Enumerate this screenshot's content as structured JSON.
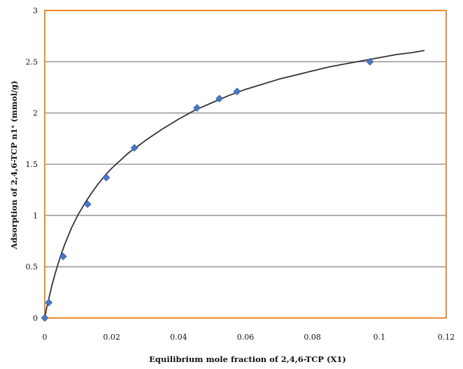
{
  "chart_data": {
    "type": "scatter",
    "title": "",
    "xlabel": "Equilibrium mole fraction of 2,4,6-TCP (X1)",
    "ylabel": "Adsorption of 2,4,6-TCP n1ˢ (mmol/g)",
    "xlim": [
      0,
      0.12
    ],
    "ylim": [
      0,
      3
    ],
    "xticks": [
      0,
      0.02,
      0.04,
      0.06,
      0.08,
      0.1,
      0.12
    ],
    "yticks": [
      0,
      0.5,
      1,
      1.5,
      2,
      2.5,
      3
    ],
    "xtick_labels": [
      "0",
      "0.02",
      "0.04",
      "0.06",
      "0.08",
      "0.1",
      "0.12"
    ],
    "ytick_labels": [
      "0",
      "0.5",
      "1",
      "1.5",
      "2",
      "2.5",
      "3"
    ],
    "grid": "horizontal",
    "legend": "none",
    "series": [
      {
        "type": "scatter",
        "marker": "diamond",
        "x": [
          0.0,
          0.0012,
          0.0055,
          0.0128,
          0.0184,
          0.0268,
          0.0455,
          0.0522,
          0.0575,
          0.0972
        ],
        "y": [
          0.0,
          0.15,
          0.6,
          1.11,
          1.37,
          1.66,
          2.05,
          2.14,
          2.21,
          2.5
        ]
      },
      {
        "type": "line",
        "x": [
          0,
          0.0005,
          0.001,
          0.002,
          0.003,
          0.004,
          0.005,
          0.006,
          0.008,
          0.01,
          0.012,
          0.014,
          0.016,
          0.018,
          0.02,
          0.022,
          0.025,
          0.028,
          0.03,
          0.035,
          0.04,
          0.045,
          0.05,
          0.055,
          0.06,
          0.065,
          0.07,
          0.075,
          0.08,
          0.085,
          0.09,
          0.095,
          0.1,
          0.105,
          0.11,
          0.1135
        ],
        "y": [
          0.0,
          0.09,
          0.16,
          0.3,
          0.42,
          0.53,
          0.63,
          0.72,
          0.88,
          1.01,
          1.12,
          1.22,
          1.31,
          1.39,
          1.46,
          1.52,
          1.61,
          1.68,
          1.73,
          1.84,
          1.94,
          2.03,
          2.1,
          2.17,
          2.23,
          2.28,
          2.33,
          2.37,
          2.41,
          2.45,
          2.48,
          2.51,
          2.54,
          2.57,
          2.59,
          2.61
        ]
      }
    ],
    "colors": {
      "frame": "#f08a2c",
      "grid": "#9a9a9a",
      "marker": "#4a78c8",
      "curve": "#333333"
    }
  }
}
